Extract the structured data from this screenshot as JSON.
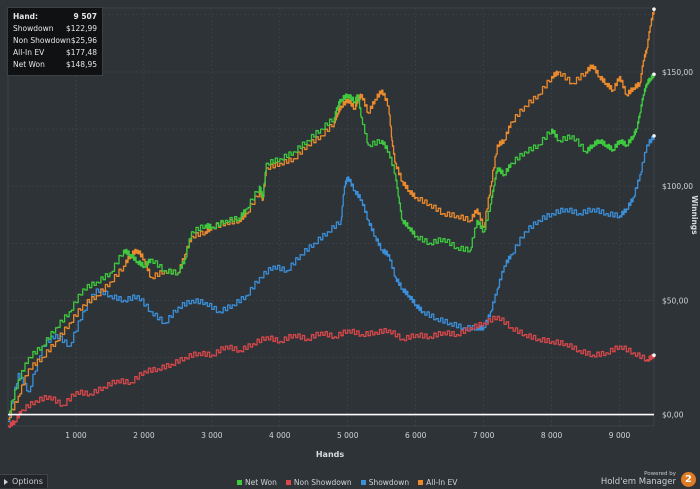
{
  "stats": {
    "rows": [
      {
        "label": "Hand:",
        "value": "9 507"
      },
      {
        "label": "Showdown",
        "value": "$122,99"
      },
      {
        "label": "Non Showdown",
        "value": "$25,96"
      },
      {
        "label": "All-In EV",
        "value": "$177,48"
      },
      {
        "label": "Net Won",
        "value": "$148,95"
      }
    ]
  },
  "options_label": "Options",
  "brand": {
    "powered_by": "Powered by",
    "name": "Hold'em Manager",
    "logo_glyph": "2"
  },
  "chart_data": {
    "type": "line",
    "xlabel": "Hands",
    "ylabel": "Winnings",
    "xlim": [
      0,
      9507
    ],
    "ylim": [
      -5,
      178
    ],
    "x_ticks": [
      1000,
      2000,
      3000,
      4000,
      5000,
      6000,
      7000,
      8000,
      9000
    ],
    "x_tick_labels": [
      "1 000",
      "2 000",
      "3 000",
      "4 000",
      "5 000",
      "6 000",
      "7 000",
      "8 000",
      "9 000"
    ],
    "y_ticks": [
      0,
      50,
      100,
      150
    ],
    "y_tick_labels": [
      "$0,00",
      "$50,00",
      "$100,00",
      "$150,00"
    ],
    "grid": true,
    "legend_position": "bottom",
    "series": [
      {
        "name": "Net Won",
        "color": "#3ec93e",
        "x": [
          0,
          150,
          300,
          500,
          700,
          900,
          1100,
          1300,
          1500,
          1700,
          1800,
          1900,
          2000,
          2100,
          2300,
          2500,
          2600,
          2700,
          2900,
          3000,
          3200,
          3400,
          3500,
          3700,
          3750,
          3800,
          4000,
          4200,
          4400,
          4600,
          4800,
          4850,
          4900,
          5000,
          5100,
          5150,
          5200,
          5300,
          5500,
          5600,
          5700,
          5750,
          5800,
          5900,
          6000,
          6200,
          6400,
          6600,
          6800,
          6900,
          7000,
          7100,
          7150,
          7200,
          7300,
          7400,
          7600,
          7800,
          8000,
          8100,
          8300,
          8500,
          8600,
          8700,
          8800,
          8900,
          9000,
          9100,
          9200,
          9250,
          9300,
          9350,
          9400,
          9450,
          9507
        ],
        "y": [
          0,
          15,
          25,
          30,
          38,
          45,
          55,
          58,
          62,
          72,
          70,
          67,
          65,
          68,
          63,
          62,
          68,
          80,
          83,
          82,
          85,
          86,
          90,
          100,
          95,
          110,
          112,
          115,
          120,
          125,
          130,
          135,
          138,
          140,
          137,
          140,
          130,
          118,
          120,
          115,
          105,
          95,
          85,
          82,
          78,
          75,
          77,
          73,
          72,
          85,
          80,
          92,
          100,
          108,
          105,
          110,
          115,
          118,
          125,
          120,
          122,
          115,
          118,
          120,
          118,
          116,
          120,
          118,
          122,
          125,
          132,
          140,
          145,
          147,
          149
        ]
      },
      {
        "name": "Non Showdown",
        "color": "#d8484a",
        "x": [
          0,
          100,
          200,
          400,
          600,
          800,
          1000,
          1200,
          1400,
          1600,
          1800,
          2000,
          2200,
          2400,
          2600,
          2800,
          3000,
          3200,
          3400,
          3600,
          3800,
          4000,
          4200,
          4400,
          4600,
          4800,
          5000,
          5200,
          5400,
          5600,
          5800,
          6000,
          6200,
          6400,
          6600,
          6800,
          7000,
          7200,
          7400,
          7600,
          7800,
          8000,
          8200,
          8400,
          8600,
          8800,
          9000,
          9200,
          9400,
          9507
        ],
        "y": [
          -5,
          -3,
          2,
          6,
          8,
          4,
          10,
          9,
          12,
          15,
          14,
          19,
          20,
          22,
          25,
          27,
          26,
          30,
          28,
          31,
          34,
          32,
          35,
          33,
          36,
          34,
          37,
          35,
          36,
          37,
          33,
          35,
          34,
          36,
          35,
          38,
          40,
          43,
          38,
          35,
          33,
          32,
          31,
          28,
          26,
          27,
          30,
          27,
          24,
          26
        ]
      },
      {
        "name": "Showdown",
        "color": "#3a8fd8",
        "x": [
          0,
          150,
          300,
          500,
          700,
          900,
          1100,
          1300,
          1500,
          1700,
          1900,
          2100,
          2300,
          2500,
          2700,
          2900,
          3100,
          3300,
          3500,
          3700,
          3900,
          4100,
          4300,
          4500,
          4700,
          4900,
          4950,
          5000,
          5100,
          5200,
          5300,
          5400,
          5500,
          5600,
          5700,
          5800,
          5900,
          6000,
          6100,
          6300,
          6500,
          6700,
          6900,
          7000,
          7100,
          7200,
          7300,
          7400,
          7600,
          7800,
          8000,
          8200,
          8400,
          8600,
          8800,
          9000,
          9100,
          9200,
          9300,
          9400,
          9507
        ],
        "y": [
          -3,
          18,
          10,
          30,
          35,
          30,
          45,
          55,
          52,
          50,
          52,
          45,
          40,
          47,
          50,
          49,
          45,
          48,
          52,
          60,
          65,
          63,
          70,
          75,
          80,
          85,
          100,
          104,
          98,
          94,
          85,
          78,
          72,
          70,
          60,
          55,
          52,
          48,
          45,
          42,
          40,
          38,
          38,
          38,
          45,
          55,
          65,
          70,
          80,
          85,
          88,
          90,
          88,
          90,
          88,
          87,
          90,
          95,
          105,
          118,
          122
        ]
      },
      {
        "name": "All-In EV",
        "color": "#ea8a2c",
        "x": [
          0,
          150,
          300,
          500,
          700,
          900,
          1100,
          1300,
          1500,
          1700,
          1800,
          1900,
          2000,
          2100,
          2300,
          2500,
          2600,
          2700,
          2900,
          3000,
          3200,
          3400,
          3500,
          3700,
          3750,
          3800,
          4000,
          4200,
          4400,
          4600,
          4800,
          4850,
          4900,
          5000,
          5100,
          5150,
          5200,
          5300,
          5400,
          5500,
          5600,
          5650,
          5700,
          5800,
          5900,
          6000,
          6200,
          6400,
          6600,
          6800,
          6900,
          7000,
          7100,
          7200,
          7300,
          7400,
          7600,
          7800,
          8000,
          8100,
          8300,
          8500,
          8600,
          8700,
          8800,
          8900,
          9000,
          9100,
          9200,
          9300,
          9350,
          9400,
          9450,
          9507
        ],
        "y": [
          -2,
          8,
          20,
          25,
          32,
          40,
          48,
          52,
          58,
          65,
          70,
          72,
          68,
          60,
          63,
          62,
          70,
          78,
          80,
          82,
          84,
          85,
          88,
          98,
          94,
          108,
          110,
          112,
          118,
          122,
          128,
          132,
          135,
          138,
          134,
          138,
          140,
          132,
          138,
          142,
          135,
          120,
          110,
          102,
          98,
          95,
          92,
          88,
          87,
          85,
          90,
          82,
          100,
          118,
          120,
          128,
          135,
          140,
          148,
          150,
          145,
          150,
          153,
          148,
          145,
          142,
          148,
          140,
          143,
          145,
          155,
          160,
          170,
          177.5
        ]
      }
    ]
  }
}
